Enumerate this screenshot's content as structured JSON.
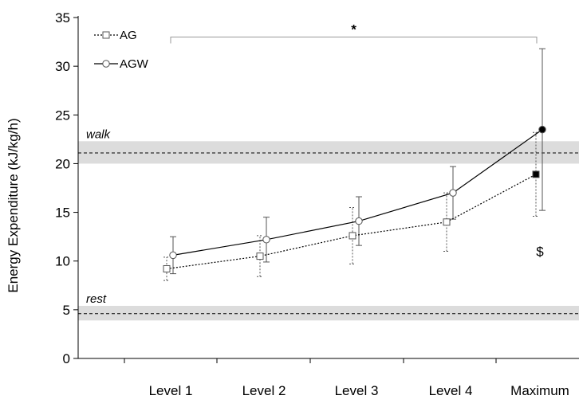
{
  "chart_data": {
    "type": "line",
    "title": "",
    "xlabel": "",
    "ylabel": "Energy Expenditure (kJ/kg/h)",
    "ylim": [
      0,
      35
    ],
    "yticks": [
      0,
      5,
      10,
      15,
      20,
      25,
      30,
      35
    ],
    "categories": [
      "Level 1",
      "Level 2",
      "Level 3",
      "Level 4",
      "Maximum"
    ],
    "grid": false,
    "legend_position": "top-left",
    "series": [
      {
        "name": "AG",
        "line_style": "dotted",
        "marker": "square",
        "color": "#000000",
        "values": [
          9.2,
          10.5,
          12.6,
          14.0,
          18.9
        ],
        "error_minus": [
          1.2,
          2.1,
          2.9,
          3.0,
          4.3
        ],
        "error_plus": [
          1.2,
          2.1,
          2.9,
          3.0,
          4.3
        ],
        "filled_last": true
      },
      {
        "name": "AGW",
        "line_style": "solid",
        "marker": "circle",
        "color": "#000000",
        "values": [
          10.6,
          12.2,
          14.1,
          17.0,
          23.5
        ],
        "error_minus": [
          1.9,
          2.3,
          2.5,
          2.7,
          8.3
        ],
        "error_plus": [
          1.9,
          2.3,
          2.5,
          2.7,
          8.3
        ],
        "filled_last": true
      }
    ],
    "reference_bands": [
      {
        "label": "walk",
        "mean": 21.1,
        "low": 20.0,
        "high": 22.3,
        "color": "#dcdcdc"
      },
      {
        "label": "rest",
        "mean": 4.6,
        "low": 3.9,
        "high": 5.4,
        "color": "#dcdcdc"
      }
    ],
    "annotations": [
      {
        "text": "*",
        "type": "significance-bracket",
        "from_category": "Level 1",
        "to_category": "Maximum",
        "y": 33.0
      },
      {
        "text": "$",
        "type": "marker",
        "category": "Maximum",
        "y": 10.5
      }
    ]
  }
}
